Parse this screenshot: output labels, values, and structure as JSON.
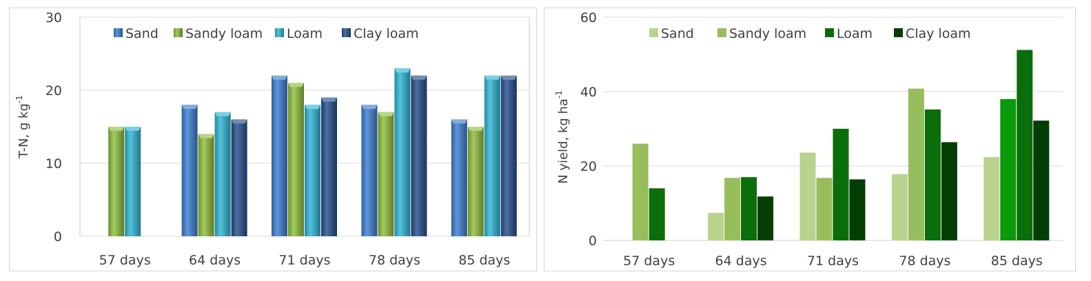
{
  "chart_data": [
    {
      "type": "bar",
      "style": "3d-bevel",
      "categories": [
        "57 days",
        "64 days",
        "71 days",
        "78 days",
        "85 days"
      ],
      "series": [
        {
          "name": "Sand",
          "color": "#3d7fd1",
          "values": [
            null,
            18,
            22,
            18,
            16
          ]
        },
        {
          "name": "Sandy loam",
          "color": "#8fbf3c",
          "values": [
            15,
            14,
            21,
            17,
            15
          ]
        },
        {
          "name": "Loam",
          "color": "#2fb6d6",
          "values": [
            15,
            17,
            18,
            23,
            22
          ]
        },
        {
          "name": "Clay loam",
          "color": "#254f8c",
          "values": [
            null,
            16,
            19,
            22,
            22
          ]
        }
      ],
      "ylabel_main": "T-N,  g kg",
      "ylabel_sup": "-1",
      "ylim": [
        0,
        30
      ],
      "yticks": [
        0,
        10,
        20,
        30
      ],
      "grid": true,
      "legend_position": "top"
    },
    {
      "type": "bar",
      "style": "flat",
      "categories": [
        "57 days",
        "64 days",
        "71 days",
        "78 days",
        "85 days"
      ],
      "series": [
        {
          "name": "Sand",
          "color": "#b9d38e",
          "values": [
            null,
            7.4,
            23.6,
            17.8,
            22.4
          ]
        },
        {
          "name": "Sandy loam",
          "color": "#98bd5d",
          "values": [
            26,
            16.8,
            16.8,
            40.8,
            38
          ]
        },
        {
          "name": "Loam",
          "color": "#0a6e0a",
          "values": [
            14,
            17,
            30,
            35.2,
            51.2
          ]
        },
        {
          "name": "Clay loam",
          "color": "#043e04",
          "values": [
            null,
            11.8,
            16.4,
            26.4,
            32.2
          ]
        }
      ],
      "highlight_bars": [
        {
          "series": "Sandy loam",
          "category": "85 days",
          "color": "#0b9a0b"
        }
      ],
      "ylabel_main": "N yield,  kg ha",
      "ylabel_sup": "-1",
      "ylim": [
        0,
        60
      ],
      "yticks": [
        0,
        20,
        40,
        60
      ],
      "grid": true,
      "legend_position": "top"
    }
  ]
}
